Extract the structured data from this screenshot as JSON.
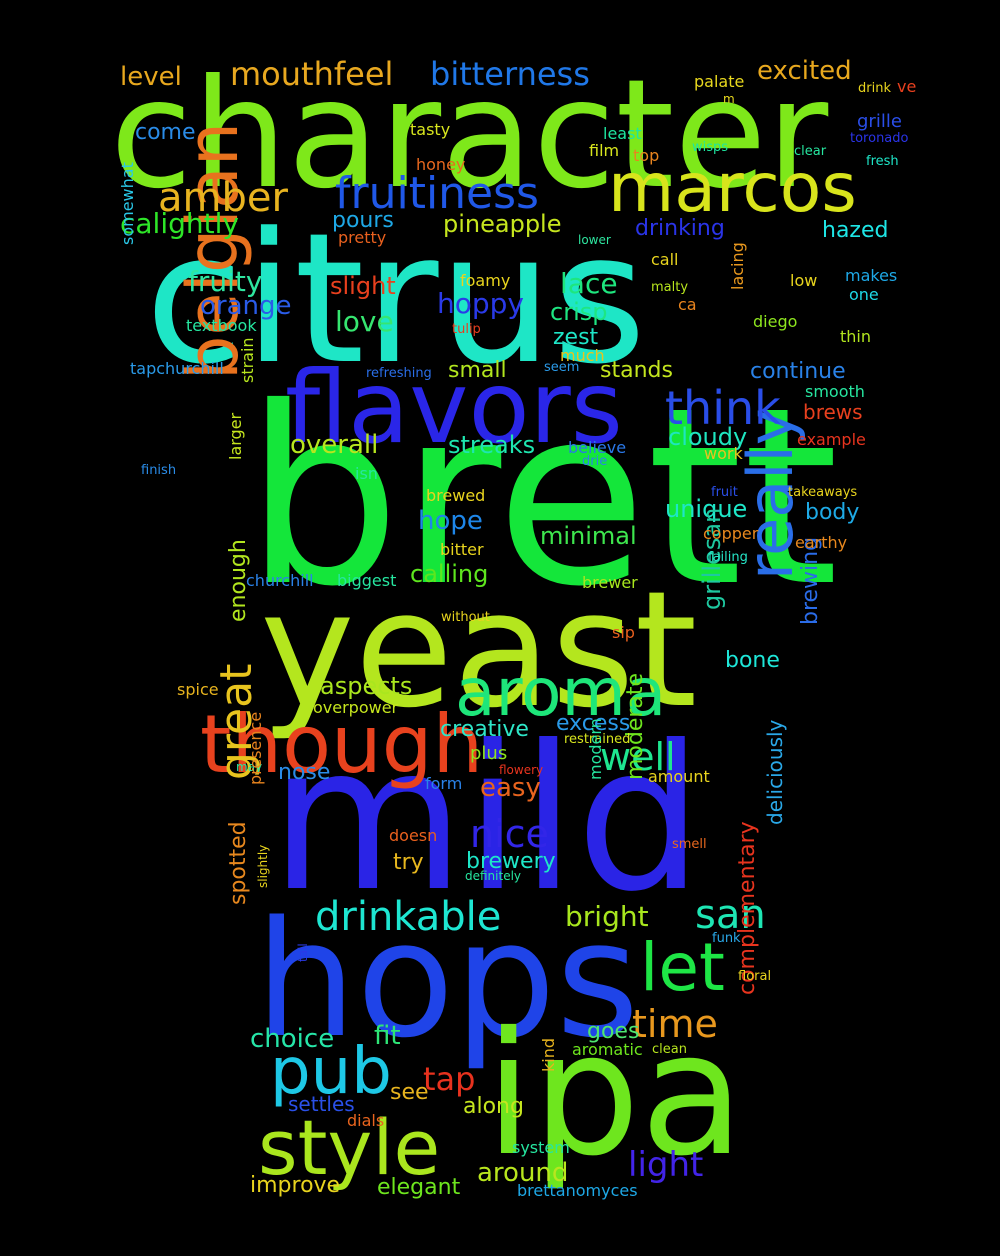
{
  "background": "#000000",
  "words": [
    {
      "text": "character",
      "color": "#7ee81a"
    },
    {
      "text": "citrus",
      "color": "#1ee6c6"
    },
    {
      "text": "brett",
      "color": "#14e63a"
    },
    {
      "text": "mild",
      "color": "#2a24e6"
    },
    {
      "text": "yeast",
      "color": "#b4e61e"
    },
    {
      "text": "hops",
      "color": "#1f44e8"
    },
    {
      "text": "ipa",
      "color": "#6ee61e"
    },
    {
      "text": "flavors",
      "color": "#2a26e8"
    },
    {
      "text": "marcos",
      "color": "#d8e41c"
    },
    {
      "text": "belgian",
      "color": "#e8721e"
    },
    {
      "text": "though",
      "color": "#e8421e"
    },
    {
      "text": "aroma",
      "color": "#1ee67a"
    },
    {
      "text": "really",
      "color": "#2a6ee8"
    },
    {
      "text": "style",
      "color": "#aae61e"
    },
    {
      "text": "pub",
      "color": "#1ec8e6"
    },
    {
      "text": "fruitiness",
      "color": "#2058e8"
    },
    {
      "text": "mouthfeel",
      "color": "#e8a820"
    },
    {
      "text": "bitterness",
      "color": "#2078e8"
    },
    {
      "text": "amber",
      "color": "#e8b420"
    },
    {
      "text": "think",
      "color": "#2a4ee8"
    },
    {
      "text": "drinkable",
      "color": "#1ee6d2"
    },
    {
      "text": "great",
      "color": "#e8c41e"
    },
    {
      "text": "let",
      "color": "#1ee646"
    },
    {
      "text": "san",
      "color": "#1ee6b4"
    },
    {
      "text": "time",
      "color": "#e8981e"
    },
    {
      "text": "nice",
      "color": "#3226e8"
    },
    {
      "text": "light",
      "color": "#4224e8"
    },
    {
      "text": "well",
      "color": "#1ee690"
    },
    {
      "text": "level",
      "color": "#e8a81e"
    },
    {
      "text": "excited",
      "color": "#e8a81e"
    },
    {
      "text": "calightly",
      "color": "#2ee628"
    },
    {
      "text": "come",
      "color": "#2a8ce8"
    },
    {
      "text": "pineapple",
      "color": "#c6e61e"
    },
    {
      "text": "drinking",
      "color": "#2a34e8"
    },
    {
      "text": "hazed",
      "color": "#1ee6e6"
    },
    {
      "text": "pours",
      "color": "#1ea8e6"
    },
    {
      "text": "pretty",
      "color": "#e8601e"
    },
    {
      "text": "fruity",
      "color": "#2ee6a0"
    },
    {
      "text": "orange",
      "color": "#2a5ce8"
    },
    {
      "text": "slight",
      "color": "#e8401e"
    },
    {
      "text": "lace",
      "color": "#1ee67e"
    },
    {
      "text": "hoppy",
      "color": "#2a3ae8"
    },
    {
      "text": "crisp",
      "color": "#1ee682"
    },
    {
      "text": "love",
      "color": "#36e670"
    },
    {
      "text": "zest",
      "color": "#1ee6c8"
    },
    {
      "text": "continue",
      "color": "#2a82e8"
    },
    {
      "text": "brews",
      "color": "#e8401e"
    },
    {
      "text": "small",
      "color": "#b2e61e"
    },
    {
      "text": "stands",
      "color": "#c4e61e"
    },
    {
      "text": "overall",
      "color": "#b8e61e"
    },
    {
      "text": "streaks",
      "color": "#1ee6b0"
    },
    {
      "text": "cloudy",
      "color": "#1ee6c0"
    },
    {
      "text": "unique",
      "color": "#1ee6c8"
    },
    {
      "text": "hope",
      "color": "#1e86e8"
    },
    {
      "text": "body",
      "color": "#1eaae6"
    },
    {
      "text": "minimal",
      "color": "#3ee64e"
    },
    {
      "text": "calling",
      "color": "#5ee61e"
    },
    {
      "text": "bone",
      "color": "#1ee6d8"
    },
    {
      "text": "grillesan",
      "color": "#1ec8a0"
    },
    {
      "text": "brewing",
      "color": "#2a6ce8"
    },
    {
      "text": "aspects",
      "color": "#aae61e"
    },
    {
      "text": "enough",
      "color": "#b2e61e"
    },
    {
      "text": "creative",
      "color": "#2ee6c8"
    },
    {
      "text": "excess",
      "color": "#2a9ae8"
    },
    {
      "text": "nose",
      "color": "#2a8ce8"
    },
    {
      "text": "plus",
      "color": "#8ee61e"
    },
    {
      "text": "easy",
      "color": "#e8641e"
    },
    {
      "text": "brewery",
      "color": "#1ee6c8"
    },
    {
      "text": "try",
      "color": "#e8b81e"
    },
    {
      "text": "moderate",
      "color": "#6ee61e"
    },
    {
      "text": "bright",
      "color": "#a8e61e"
    },
    {
      "text": "deliciously",
      "color": "#2aa8e8"
    },
    {
      "text": "spotted",
      "color": "#e8881e"
    },
    {
      "text": "choice",
      "color": "#26e6a8"
    },
    {
      "text": "fit",
      "color": "#2ee676"
    },
    {
      "text": "goes",
      "color": "#4ee670"
    },
    {
      "text": "tap",
      "color": "#e8321e"
    },
    {
      "text": "see",
      "color": "#e8b41e"
    },
    {
      "text": "along",
      "color": "#c6e61e"
    },
    {
      "text": "settles",
      "color": "#2a50e8"
    },
    {
      "text": "complementary",
      "color": "#e8341e"
    },
    {
      "text": "around",
      "color": "#b8e61e"
    },
    {
      "text": "improve",
      "color": "#e8d41e"
    },
    {
      "text": "elegant",
      "color": "#6ee61e"
    },
    {
      "text": "brettanomyces",
      "color": "#1ea8e6"
    },
    {
      "text": "palate",
      "color": "#e8d81e"
    },
    {
      "text": "m",
      "color": "#e8d81e"
    },
    {
      "text": "drink",
      "color": "#e8d41e"
    },
    {
      "text": "ve",
      "color": "#e8401e"
    },
    {
      "text": "grille",
      "color": "#2a4ee8"
    },
    {
      "text": "toronado",
      "color": "#2a34e8"
    },
    {
      "text": "clear",
      "color": "#26e6a0"
    },
    {
      "text": "fresh",
      "color": "#1ee6c8"
    },
    {
      "text": "wisps",
      "color": "#1ee6a0"
    },
    {
      "text": "least",
      "color": "#1ee6a0"
    },
    {
      "text": "film",
      "color": "#d8e61e"
    },
    {
      "text": "top",
      "color": "#e8841e"
    },
    {
      "text": "tasty",
      "color": "#d8e61e"
    },
    {
      "text": "honey",
      "color": "#e8681e"
    },
    {
      "text": "lower",
      "color": "#2ee6a0"
    },
    {
      "text": "call",
      "color": "#e8d41e"
    },
    {
      "text": "low",
      "color": "#e8d41e"
    },
    {
      "text": "makes",
      "color": "#1ea8e6"
    },
    {
      "text": "one",
      "color": "#1ed8e6"
    },
    {
      "text": "foamy",
      "color": "#e8d41e"
    },
    {
      "text": "malty",
      "color": "#b8e61e"
    },
    {
      "text": "ca",
      "color": "#e8841e"
    },
    {
      "text": "lacing",
      "color": "#e8981e"
    },
    {
      "text": "diego",
      "color": "#8ee61e"
    },
    {
      "text": "thin",
      "color": "#b2e61e"
    },
    {
      "text": "tulip",
      "color": "#e83e1e"
    },
    {
      "text": "textbook",
      "color": "#26e6a0"
    },
    {
      "text": "somewhat",
      "color": "#2ac8e8"
    },
    {
      "text": "much",
      "color": "#e8c41e"
    },
    {
      "text": "tapchurchill",
      "color": "#2a9ae8"
    },
    {
      "text": "refreshing",
      "color": "#2a6ee8"
    },
    {
      "text": "seem",
      "color": "#2a9ae8"
    },
    {
      "text": "smooth",
      "color": "#26e6a0"
    },
    {
      "text": "strain",
      "color": "#b8e61e"
    },
    {
      "text": "example",
      "color": "#e8341e"
    },
    {
      "text": "believe",
      "color": "#2a78e8"
    },
    {
      "text": "drie",
      "color": "#2a82e8"
    },
    {
      "text": "isn",
      "color": "#26e6a0"
    },
    {
      "text": "work",
      "color": "#e8c41e"
    },
    {
      "text": "finish",
      "color": "#2a8ce8"
    },
    {
      "text": "larger",
      "color": "#c6e61e"
    },
    {
      "text": "fruit",
      "color": "#2a4ee8"
    },
    {
      "text": "takeaways",
      "color": "#e8d41e"
    },
    {
      "text": "brewed",
      "color": "#e8d41e"
    },
    {
      "text": "copper",
      "color": "#e8881e"
    },
    {
      "text": "earthy",
      "color": "#e8881e"
    },
    {
      "text": "bitter",
      "color": "#e8d41e"
    },
    {
      "text": "failing",
      "color": "#26e6c8"
    },
    {
      "text": "churchill",
      "color": "#2a82e8"
    },
    {
      "text": "biggest",
      "color": "#26e6a0"
    },
    {
      "text": "brewer",
      "color": "#a8e61e"
    },
    {
      "text": "without",
      "color": "#e8d41e"
    },
    {
      "text": "sip",
      "color": "#e8601e"
    },
    {
      "text": "spice",
      "color": "#e8b41e"
    },
    {
      "text": "overpower",
      "color": "#c6e61e"
    },
    {
      "text": "restrained",
      "color": "#d8e61e"
    },
    {
      "text": "may",
      "color": "#26e6a0"
    },
    {
      "text": "flowery",
      "color": "#e8341e"
    },
    {
      "text": "form",
      "color": "#2a82e8"
    },
    {
      "text": "amount",
      "color": "#e8d41e"
    },
    {
      "text": "modern",
      "color": "#26e6a0"
    },
    {
      "text": "presence",
      "color": "#e8841e"
    },
    {
      "text": "doesn",
      "color": "#e8601e"
    },
    {
      "text": "smell",
      "color": "#e8681e"
    },
    {
      "text": "definitely",
      "color": "#26e6a0"
    },
    {
      "text": "slightly",
      "color": "#e8d41e"
    },
    {
      "text": "funk",
      "color": "#2aa8e8"
    },
    {
      "text": "tall",
      "color": "#2a3ae8"
    },
    {
      "text": "floral",
      "color": "#e8d41e"
    },
    {
      "text": "aromatic",
      "color": "#6ee61e"
    },
    {
      "text": "clean",
      "color": "#b8e61e"
    },
    {
      "text": "kind",
      "color": "#e8b41e"
    },
    {
      "text": "dials",
      "color": "#e8641e"
    },
    {
      "text": "system",
      "color": "#26e6a0"
    }
  ]
}
